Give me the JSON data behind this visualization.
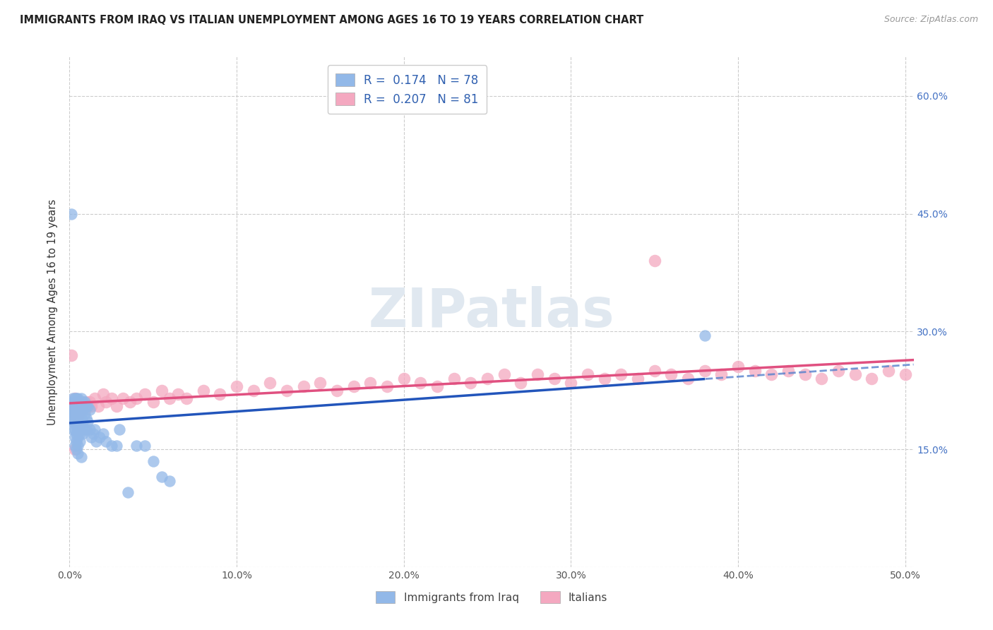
{
  "title": "IMMIGRANTS FROM IRAQ VS ITALIAN UNEMPLOYMENT AMONG AGES 16 TO 19 YEARS CORRELATION CHART",
  "source": "Source: ZipAtlas.com",
  "ylabel": "Unemployment Among Ages 16 to 19 years",
  "xlim": [
    0,
    0.505
  ],
  "ylim": [
    0.0,
    0.65
  ],
  "xticks": [
    0.0,
    0.1,
    0.2,
    0.3,
    0.4,
    0.5
  ],
  "xticklabels": [
    "0.0%",
    "10.0%",
    "20.0%",
    "30.0%",
    "40.0%",
    "50.0%"
  ],
  "yticks_right": [
    0.15,
    0.3,
    0.45,
    0.6
  ],
  "yticklabels_right": [
    "15.0%",
    "30.0%",
    "45.0%",
    "60.0%"
  ],
  "legend1_label1": "R =  0.174   N = 78",
  "legend1_label2": "R =  0.207   N = 81",
  "bottom_legend1": "Immigrants from Iraq",
  "bottom_legend2": "Italians",
  "blue_color": "#92b8e8",
  "pink_color": "#f4a8c0",
  "blue_line_color": "#2255bb",
  "pink_line_color": "#e05080",
  "dashed_line_color": "#5580cc",
  "watermark_text": "ZIPatlas",
  "blue_x": [
    0.001,
    0.001,
    0.001,
    0.001,
    0.002,
    0.002,
    0.002,
    0.002,
    0.002,
    0.002,
    0.003,
    0.003,
    0.003,
    0.003,
    0.003,
    0.003,
    0.003,
    0.003,
    0.003,
    0.004,
    0.004,
    0.004,
    0.004,
    0.004,
    0.004,
    0.004,
    0.004,
    0.005,
    0.005,
    0.005,
    0.005,
    0.005,
    0.005,
    0.005,
    0.005,
    0.006,
    0.006,
    0.006,
    0.006,
    0.006,
    0.006,
    0.007,
    0.007,
    0.007,
    0.007,
    0.007,
    0.008,
    0.008,
    0.008,
    0.008,
    0.009,
    0.009,
    0.009,
    0.01,
    0.01,
    0.01,
    0.011,
    0.011,
    0.012,
    0.012,
    0.013,
    0.014,
    0.015,
    0.016,
    0.018,
    0.02,
    0.022,
    0.025,
    0.028,
    0.03,
    0.035,
    0.04,
    0.045,
    0.05,
    0.055,
    0.06,
    0.38,
    0.001
  ],
  "blue_y": [
    0.205,
    0.2,
    0.195,
    0.19,
    0.215,
    0.21,
    0.2,
    0.195,
    0.185,
    0.175,
    0.215,
    0.21,
    0.205,
    0.2,
    0.195,
    0.185,
    0.175,
    0.165,
    0.155,
    0.215,
    0.21,
    0.2,
    0.19,
    0.18,
    0.17,
    0.16,
    0.15,
    0.215,
    0.205,
    0.195,
    0.185,
    0.175,
    0.165,
    0.155,
    0.145,
    0.21,
    0.2,
    0.19,
    0.18,
    0.17,
    0.16,
    0.215,
    0.205,
    0.195,
    0.185,
    0.14,
    0.21,
    0.2,
    0.185,
    0.17,
    0.21,
    0.195,
    0.175,
    0.205,
    0.19,
    0.175,
    0.205,
    0.185,
    0.2,
    0.175,
    0.165,
    0.17,
    0.175,
    0.16,
    0.165,
    0.17,
    0.16,
    0.155,
    0.155,
    0.175,
    0.095,
    0.155,
    0.155,
    0.135,
    0.115,
    0.11,
    0.295,
    0.45
  ],
  "pink_x": [
    0.001,
    0.002,
    0.002,
    0.003,
    0.003,
    0.003,
    0.004,
    0.004,
    0.005,
    0.005,
    0.005,
    0.006,
    0.006,
    0.007,
    0.007,
    0.008,
    0.009,
    0.01,
    0.011,
    0.012,
    0.013,
    0.015,
    0.017,
    0.02,
    0.022,
    0.025,
    0.028,
    0.032,
    0.036,
    0.04,
    0.045,
    0.05,
    0.055,
    0.06,
    0.065,
    0.07,
    0.08,
    0.09,
    0.1,
    0.11,
    0.12,
    0.13,
    0.14,
    0.15,
    0.16,
    0.17,
    0.18,
    0.19,
    0.2,
    0.21,
    0.22,
    0.23,
    0.24,
    0.25,
    0.26,
    0.27,
    0.28,
    0.29,
    0.3,
    0.31,
    0.32,
    0.33,
    0.34,
    0.35,
    0.36,
    0.37,
    0.38,
    0.39,
    0.4,
    0.41,
    0.42,
    0.43,
    0.44,
    0.45,
    0.46,
    0.47,
    0.48,
    0.49,
    0.5,
    0.003,
    0.35
  ],
  "pink_y": [
    0.27,
    0.205,
    0.195,
    0.215,
    0.205,
    0.195,
    0.21,
    0.2,
    0.21,
    0.2,
    0.19,
    0.205,
    0.195,
    0.21,
    0.2,
    0.205,
    0.2,
    0.21,
    0.205,
    0.21,
    0.205,
    0.215,
    0.205,
    0.22,
    0.21,
    0.215,
    0.205,
    0.215,
    0.21,
    0.215,
    0.22,
    0.21,
    0.225,
    0.215,
    0.22,
    0.215,
    0.225,
    0.22,
    0.23,
    0.225,
    0.235,
    0.225,
    0.23,
    0.235,
    0.225,
    0.23,
    0.235,
    0.23,
    0.24,
    0.235,
    0.23,
    0.24,
    0.235,
    0.24,
    0.245,
    0.235,
    0.245,
    0.24,
    0.235,
    0.245,
    0.24,
    0.245,
    0.24,
    0.25,
    0.245,
    0.24,
    0.25,
    0.245,
    0.255,
    0.25,
    0.245,
    0.25,
    0.245,
    0.24,
    0.25,
    0.245,
    0.24,
    0.25,
    0.245,
    0.15,
    0.39
  ]
}
